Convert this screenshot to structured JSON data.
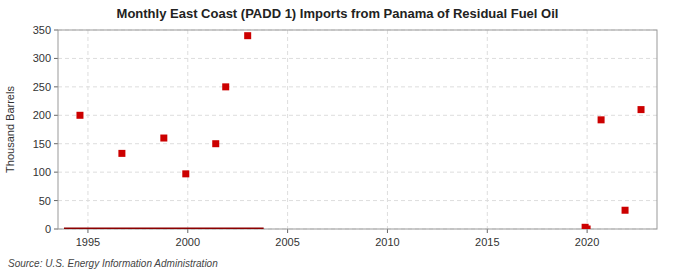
{
  "chart_data": {
    "type": "scatter",
    "title": "Monthly East Coast (PADD 1) Imports from Panama of Residual Fuel Oil",
    "y_label": "Thousand Barrels",
    "source": "Source: U.S. Energy Information Administration",
    "xlim": [
      1993.5,
      2023.5
    ],
    "ylim": [
      0,
      350
    ],
    "xticks": [
      1995,
      2000,
      2005,
      2010,
      2015,
      2020
    ],
    "yticks": [
      0,
      50,
      100,
      150,
      200,
      250,
      300,
      350
    ],
    "grid": true,
    "series": [
      {
        "type": "scatter",
        "marker": "square",
        "color": "#cc0000",
        "x": [
          1994.6,
          1996.7,
          1998.8,
          1999.9,
          2001.4,
          2001.9,
          2003.0,
          2019.9,
          2020.7,
          2021.9,
          2022.7
        ],
        "values": [
          200,
          133,
          160,
          97,
          150,
          250,
          340,
          3,
          192,
          33,
          210
        ]
      },
      {
        "type": "line",
        "line_style": "solid",
        "color": "#8b0000",
        "x": [
          1993.8,
          2003.8
        ],
        "values": [
          0,
          0
        ]
      },
      {
        "type": "scatter",
        "marker": "square",
        "color": "#cc0000",
        "x": [
          2020.0
        ],
        "values": [
          0
        ]
      }
    ]
  }
}
